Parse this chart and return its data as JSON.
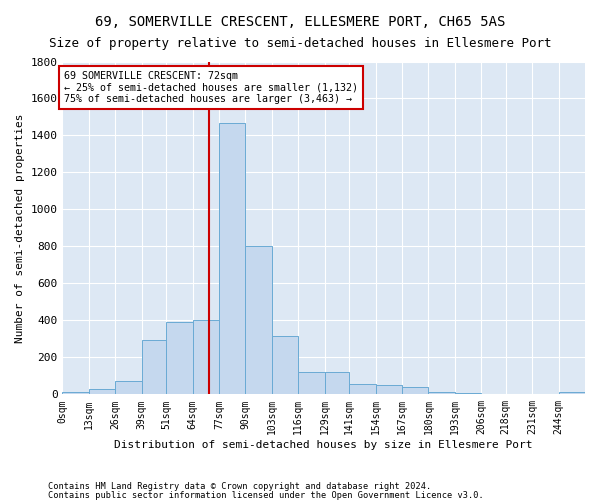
{
  "title": "69, SOMERVILLE CRESCENT, ELLESMERE PORT, CH65 5AS",
  "subtitle": "Size of property relative to semi-detached houses in Ellesmere Port",
  "xlabel": "Distribution of semi-detached houses by size in Ellesmere Port",
  "ylabel": "Number of semi-detached properties",
  "bin_edges": [
    0,
    13,
    26,
    39,
    51,
    64,
    77,
    90,
    103,
    116,
    129,
    141,
    154,
    167,
    180,
    193,
    206,
    218,
    231,
    244,
    257
  ],
  "bin_counts": [
    10,
    30,
    70,
    295,
    390,
    400,
    1470,
    800,
    315,
    120,
    120,
    55,
    50,
    40,
    15,
    5,
    0,
    0,
    0,
    15
  ],
  "bar_color": "#c5d8ee",
  "bar_edge_color": "#6aaad4",
  "property_size": 72,
  "property_label": "69 SOMERVILLE CRESCENT: 72sqm",
  "pct_smaller": 25,
  "count_smaller": 1132,
  "pct_larger": 75,
  "count_larger": 3463,
  "annotation_box_color": "#cc0000",
  "vline_color": "#cc0000",
  "background_color": "#dde8f4",
  "grid_color": "#ffffff",
  "ylim": [
    0,
    1800
  ],
  "yticks": [
    0,
    200,
    400,
    600,
    800,
    1000,
    1200,
    1400,
    1600,
    1800
  ],
  "title_fontsize": 10,
  "subtitle_fontsize": 9,
  "footer1": "Contains HM Land Registry data © Crown copyright and database right 2024.",
  "footer2": "Contains public sector information licensed under the Open Government Licence v3.0."
}
